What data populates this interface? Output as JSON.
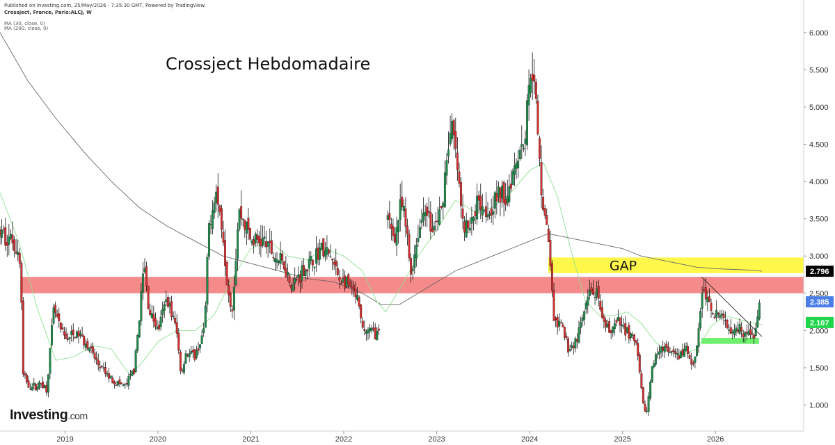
{
  "header": {
    "published": "Published on Investing.com, 25/May/2026 - 7:35:30 GMT, Powered by TradingView.",
    "symbol": "Crossject, France, Paris:ALCJ, W",
    "ma1": "MA (30, close, 0)",
    "ma2": "MA (200, close, 0)"
  },
  "logo": {
    "name": "Investing",
    "suffix": ".com"
  },
  "colors": {
    "up": "#1e8a4a",
    "down": "#d32f2f",
    "ma30": "#8fe08f",
    "ma200": "#666666",
    "resistance_zone": "#f48a8a",
    "gap_zone": "#fff84a",
    "support_zone": "#6ef06e",
    "tag_dark": "#000000",
    "tag_blue": "#4a7ee8",
    "tag_green": "#1fd64a"
  },
  "chart_data": {
    "type": "candlestick",
    "title": "Crossject Hebdomadaire",
    "x_labels": [
      "2019",
      "2020",
      "2021",
      "2022",
      "2023",
      "2024",
      "2025",
      "2026"
    ],
    "y_labels": [
      "1.000",
      "1.500",
      "2.000",
      "2.500",
      "3.000",
      "3.500",
      "4.000",
      "4.500",
      "5.000",
      "5.500",
      "6.000"
    ],
    "ylim": [
      0.65,
      6.25
    ],
    "xlim": [
      2018.3,
      2026.95
    ],
    "grid": false,
    "price_tags": [
      {
        "value": 2.796,
        "label": "2.796",
        "color": "tag_dark"
      },
      {
        "value": 2.385,
        "label": "2.385",
        "color": "tag_blue"
      },
      {
        "value": 2.107,
        "label": "2.107",
        "color": "tag_green"
      }
    ],
    "zones": [
      {
        "name": "resistance",
        "y0": 2.5,
        "y1": 2.72,
        "x0": 2018.52,
        "x1": 2026.95,
        "color": "resistance_zone",
        "label": ""
      },
      {
        "name": "gap",
        "y0": 2.77,
        "y1": 2.98,
        "x0": 2024.2,
        "x1": 2026.95,
        "color": "gap_zone",
        "label": "GAP"
      },
      {
        "name": "support",
        "y0": 1.82,
        "y1": 1.9,
        "x0": 2025.85,
        "x1": 2026.47,
        "color": "support_zone",
        "label": ""
      }
    ],
    "trendline": {
      "x0": 2025.85,
      "y0": 2.72,
      "x1": 2026.5,
      "y1": 1.92
    },
    "anchors": [
      [
        2018.3,
        3.3
      ],
      [
        2018.45,
        3.2
      ],
      [
        2018.52,
        2.9
      ],
      [
        2018.55,
        1.4
      ],
      [
        2018.62,
        1.25
      ],
      [
        2018.7,
        1.25
      ],
      [
        2018.75,
        1.3
      ],
      [
        2018.8,
        1.2
      ],
      [
        2018.88,
        2.3
      ],
      [
        2018.95,
        2.0
      ],
      [
        2019.0,
        1.9
      ],
      [
        2019.15,
        1.95
      ],
      [
        2019.25,
        1.8
      ],
      [
        2019.35,
        1.55
      ],
      [
        2019.45,
        1.4
      ],
      [
        2019.55,
        1.3
      ],
      [
        2019.65,
        1.25
      ],
      [
        2019.75,
        1.5
      ],
      [
        2019.85,
        2.9
      ],
      [
        2019.9,
        2.3
      ],
      [
        2020.0,
        2.0
      ],
      [
        2020.1,
        2.45
      ],
      [
        2020.2,
        2.0
      ],
      [
        2020.25,
        1.4
      ],
      [
        2020.3,
        1.7
      ],
      [
        2020.4,
        1.65
      ],
      [
        2020.5,
        2.0
      ],
      [
        2020.55,
        3.4
      ],
      [
        2020.62,
        3.9
      ],
      [
        2020.7,
        3.3
      ],
      [
        2020.75,
        2.6
      ],
      [
        2020.8,
        2.3
      ],
      [
        2020.87,
        3.6
      ],
      [
        2020.95,
        3.4
      ],
      [
        2021.0,
        3.2
      ],
      [
        2021.15,
        3.2
      ],
      [
        2021.25,
        3.0
      ],
      [
        2021.35,
        2.9
      ],
      [
        2021.45,
        2.6
      ],
      [
        2021.55,
        2.8
      ],
      [
        2021.65,
        2.9
      ],
      [
        2021.75,
        3.1
      ],
      [
        2021.85,
        3.0
      ],
      [
        2021.95,
        2.7
      ],
      [
        2022.05,
        2.6
      ],
      [
        2022.15,
        2.4
      ],
      [
        2022.2,
        2.0
      ],
      [
        2022.28,
        2.0
      ],
      [
        2022.38,
        1.95
      ],
      [
        2022.45,
        1.8
      ],
      [
        2022.46,
        3.5
      ],
      [
        2022.55,
        3.25
      ],
      [
        2022.62,
        3.7
      ],
      [
        2022.68,
        3.3
      ],
      [
        2022.72,
        2.75
      ],
      [
        2022.8,
        3.3
      ],
      [
        2022.88,
        3.7
      ],
      [
        2022.95,
        3.3
      ],
      [
        2023.05,
        3.6
      ],
      [
        2023.12,
        4.5
      ],
      [
        2023.17,
        4.7
      ],
      [
        2023.22,
        4.2
      ],
      [
        2023.28,
        3.4
      ],
      [
        2023.35,
        3.35
      ],
      [
        2023.45,
        3.8
      ],
      [
        2023.55,
        3.6
      ],
      [
        2023.65,
        3.8
      ],
      [
        2023.75,
        3.8
      ],
      [
        2023.85,
        4.3
      ],
      [
        2023.95,
        4.6
      ],
      [
        2024.02,
        5.7
      ],
      [
        2024.08,
        4.8
      ],
      [
        2024.12,
        4.0
      ],
      [
        2024.18,
        3.4
      ],
      [
        2024.22,
        3.0
      ],
      [
        2024.26,
        2.1
      ],
      [
        2024.35,
        2.05
      ],
      [
        2024.42,
        1.75
      ],
      [
        2024.5,
        1.85
      ],
      [
        2024.58,
        2.2
      ],
      [
        2024.65,
        2.5
      ],
      [
        2024.72,
        2.5
      ],
      [
        2024.78,
        2.1
      ],
      [
        2024.85,
        2.0
      ],
      [
        2024.95,
        2.1
      ],
      [
        2025.05,
        2.0
      ],
      [
        2025.15,
        1.8
      ],
      [
        2025.22,
        1.0
      ],
      [
        2025.26,
        0.9
      ],
      [
        2025.32,
        1.5
      ],
      [
        2025.4,
        1.8
      ],
      [
        2025.5,
        1.7
      ],
      [
        2025.6,
        1.65
      ],
      [
        2025.7,
        1.75
      ],
      [
        2025.75,
        1.5
      ],
      [
        2025.8,
        1.8
      ],
      [
        2025.86,
        2.55
      ],
      [
        2025.95,
        2.3
      ],
      [
        2026.05,
        2.2
      ],
      [
        2026.15,
        2.05
      ],
      [
        2026.25,
        2.05
      ],
      [
        2026.35,
        1.95
      ],
      [
        2026.42,
        1.9
      ],
      [
        2026.45,
        2.2
      ],
      [
        2026.48,
        2.38
      ]
    ],
    "ma30": [
      [
        2018.3,
        3.85
      ],
      [
        2018.5,
        3.2
      ],
      [
        2018.7,
        2.3
      ],
      [
        2018.9,
        1.6
      ],
      [
        2019.1,
        1.65
      ],
      [
        2019.3,
        1.8
      ],
      [
        2019.5,
        1.75
      ],
      [
        2019.7,
        1.4
      ],
      [
        2019.85,
        1.6
      ],
      [
        2020.0,
        1.85
      ],
      [
        2020.2,
        2.0
      ],
      [
        2020.4,
        2.0
      ],
      [
        2020.6,
        2.2
      ],
      [
        2020.8,
        2.7
      ],
      [
        2021.0,
        3.1
      ],
      [
        2021.2,
        3.2
      ],
      [
        2021.4,
        3.0
      ],
      [
        2021.6,
        2.95
      ],
      [
        2021.8,
        3.1
      ],
      [
        2022.0,
        3.0
      ],
      [
        2022.2,
        2.8
      ],
      [
        2022.35,
        2.4
      ],
      [
        2022.45,
        2.25
      ],
      [
        2022.6,
        2.55
      ],
      [
        2022.8,
        3.0
      ],
      [
        2023.0,
        3.35
      ],
      [
        2023.2,
        3.75
      ],
      [
        2023.4,
        3.6
      ],
      [
        2023.6,
        3.65
      ],
      [
        2023.8,
        3.85
      ],
      [
        2024.0,
        4.15
      ],
      [
        2024.15,
        4.25
      ],
      [
        2024.3,
        3.8
      ],
      [
        2024.45,
        3.05
      ],
      [
        2024.6,
        2.4
      ],
      [
        2024.75,
        2.2
      ],
      [
        2024.9,
        2.2
      ],
      [
        2025.05,
        2.25
      ],
      [
        2025.2,
        2.1
      ],
      [
        2025.35,
        1.85
      ],
      [
        2025.5,
        1.7
      ],
      [
        2025.65,
        1.68
      ],
      [
        2025.8,
        1.75
      ],
      [
        2025.95,
        2.05
      ],
      [
        2026.1,
        2.2
      ],
      [
        2026.25,
        2.15
      ],
      [
        2026.4,
        2.1
      ],
      [
        2026.5,
        2.08
      ]
    ],
    "ma200": [
      [
        2018.3,
        6.0
      ],
      [
        2018.6,
        5.35
      ],
      [
        2018.9,
        4.85
      ],
      [
        2019.2,
        4.4
      ],
      [
        2019.5,
        4.0
      ],
      [
        2019.8,
        3.65
      ],
      [
        2020.1,
        3.4
      ],
      [
        2020.4,
        3.2
      ],
      [
        2020.7,
        3.0
      ],
      [
        2021.0,
        2.9
      ],
      [
        2021.3,
        2.8
      ],
      [
        2021.6,
        2.7
      ],
      [
        2021.9,
        2.65
      ],
      [
        2022.2,
        2.5
      ],
      [
        2022.4,
        2.35
      ],
      [
        2022.6,
        2.35
      ],
      [
        2022.8,
        2.5
      ],
      [
        2023.0,
        2.65
      ],
      [
        2023.2,
        2.8
      ],
      [
        2023.4,
        2.9
      ],
      [
        2023.6,
        3.0
      ],
      [
        2023.8,
        3.1
      ],
      [
        2024.0,
        3.2
      ],
      [
        2024.2,
        3.3
      ],
      [
        2024.4,
        3.25
      ],
      [
        2024.6,
        3.2
      ],
      [
        2024.8,
        3.15
      ],
      [
        2025.0,
        3.1
      ],
      [
        2025.2,
        3.0
      ],
      [
        2025.4,
        2.95
      ],
      [
        2025.6,
        2.9
      ],
      [
        2025.8,
        2.85
      ],
      [
        2026.0,
        2.83
      ],
      [
        2026.2,
        2.82
      ],
      [
        2026.4,
        2.81
      ],
      [
        2026.5,
        2.796
      ]
    ]
  }
}
